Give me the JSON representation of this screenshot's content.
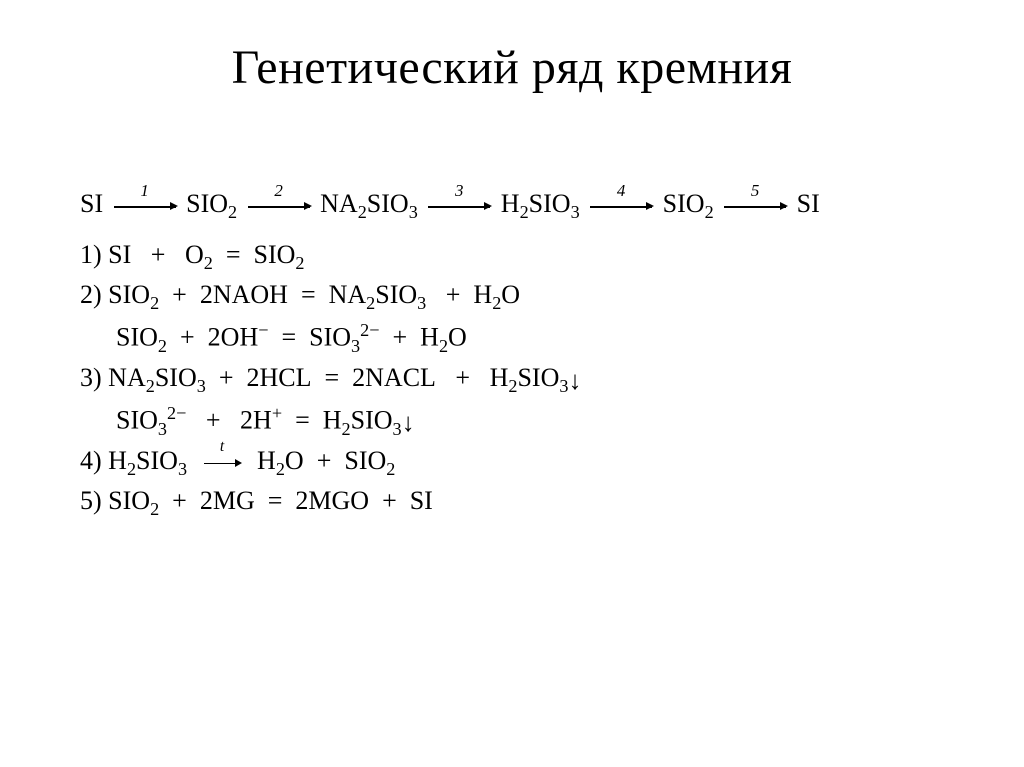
{
  "title": "Генетический ряд кремния",
  "bg_color": "#ffffff",
  "text_color": "#000000",
  "title_fontsize": 48,
  "body_fontsize": 26,
  "chain": {
    "steps": [
      "Si",
      "SiO₂",
      "Na₂SiO₃",
      "H₂SiO₃",
      "SiO₂",
      "Si"
    ],
    "arrow_labels": [
      "1",
      "2",
      "3",
      "4",
      "5"
    ]
  },
  "equations": [
    {
      "n": "1)",
      "text": "Si   +   O₂  =  SiO₂"
    },
    {
      "n": "2)",
      "text": "SiO₂  +  2NaOH  =  Na₂SiO₃   +  H₂O"
    },
    {
      "n": "",
      "text": "SiO₂  +  2OH⁻  =  SiO₃²⁻  +  H₂O"
    },
    {
      "n": "3)",
      "text": "Na₂SiO₃  +  2HCl  =  2NaCl   +   H₂SiO₃↓"
    },
    {
      "n": "",
      "text": "SiO₃²⁻   +   2H⁺  =  H₂SiO₃↓"
    },
    {
      "n": "4)",
      "text": "H₂SiO₃  →ᵗ  H₂O  +  SiO₂"
    },
    {
      "n": "5)",
      "text": "SiO₂  +  2Mg  =  2MgO  +  Si"
    }
  ]
}
